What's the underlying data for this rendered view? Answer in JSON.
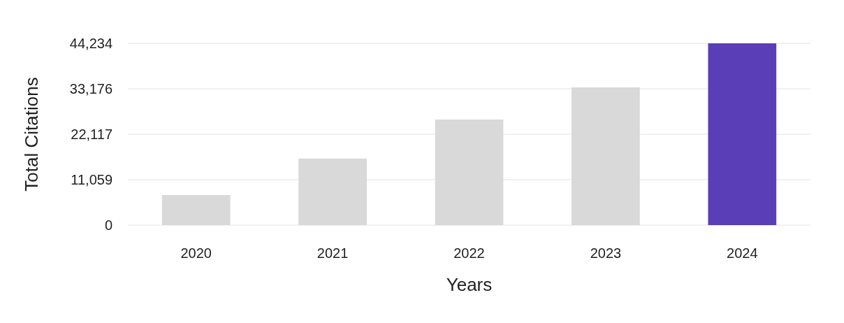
{
  "chart_data": {
    "type": "bar",
    "xlabel": "Years",
    "ylabel": "Total Citations",
    "categories": [
      "2020",
      "2021",
      "2022",
      "2023",
      "2024"
    ],
    "values": [
      7300,
      16200,
      25700,
      33500,
      44234
    ],
    "colors": [
      "#d9d9d9",
      "#d9d9d9",
      "#d9d9d9",
      "#d9d9d9",
      "#5a3eb8"
    ],
    "ylim": [
      0,
      44234
    ],
    "yticks": [
      {
        "value": 0,
        "label": "0"
      },
      {
        "value": 11059,
        "label": "11,059"
      },
      {
        "value": 22117,
        "label": "22,117"
      },
      {
        "value": 33176,
        "label": "33,176"
      },
      {
        "value": 44234,
        "label": "44,234"
      }
    ],
    "grid": "y"
  }
}
